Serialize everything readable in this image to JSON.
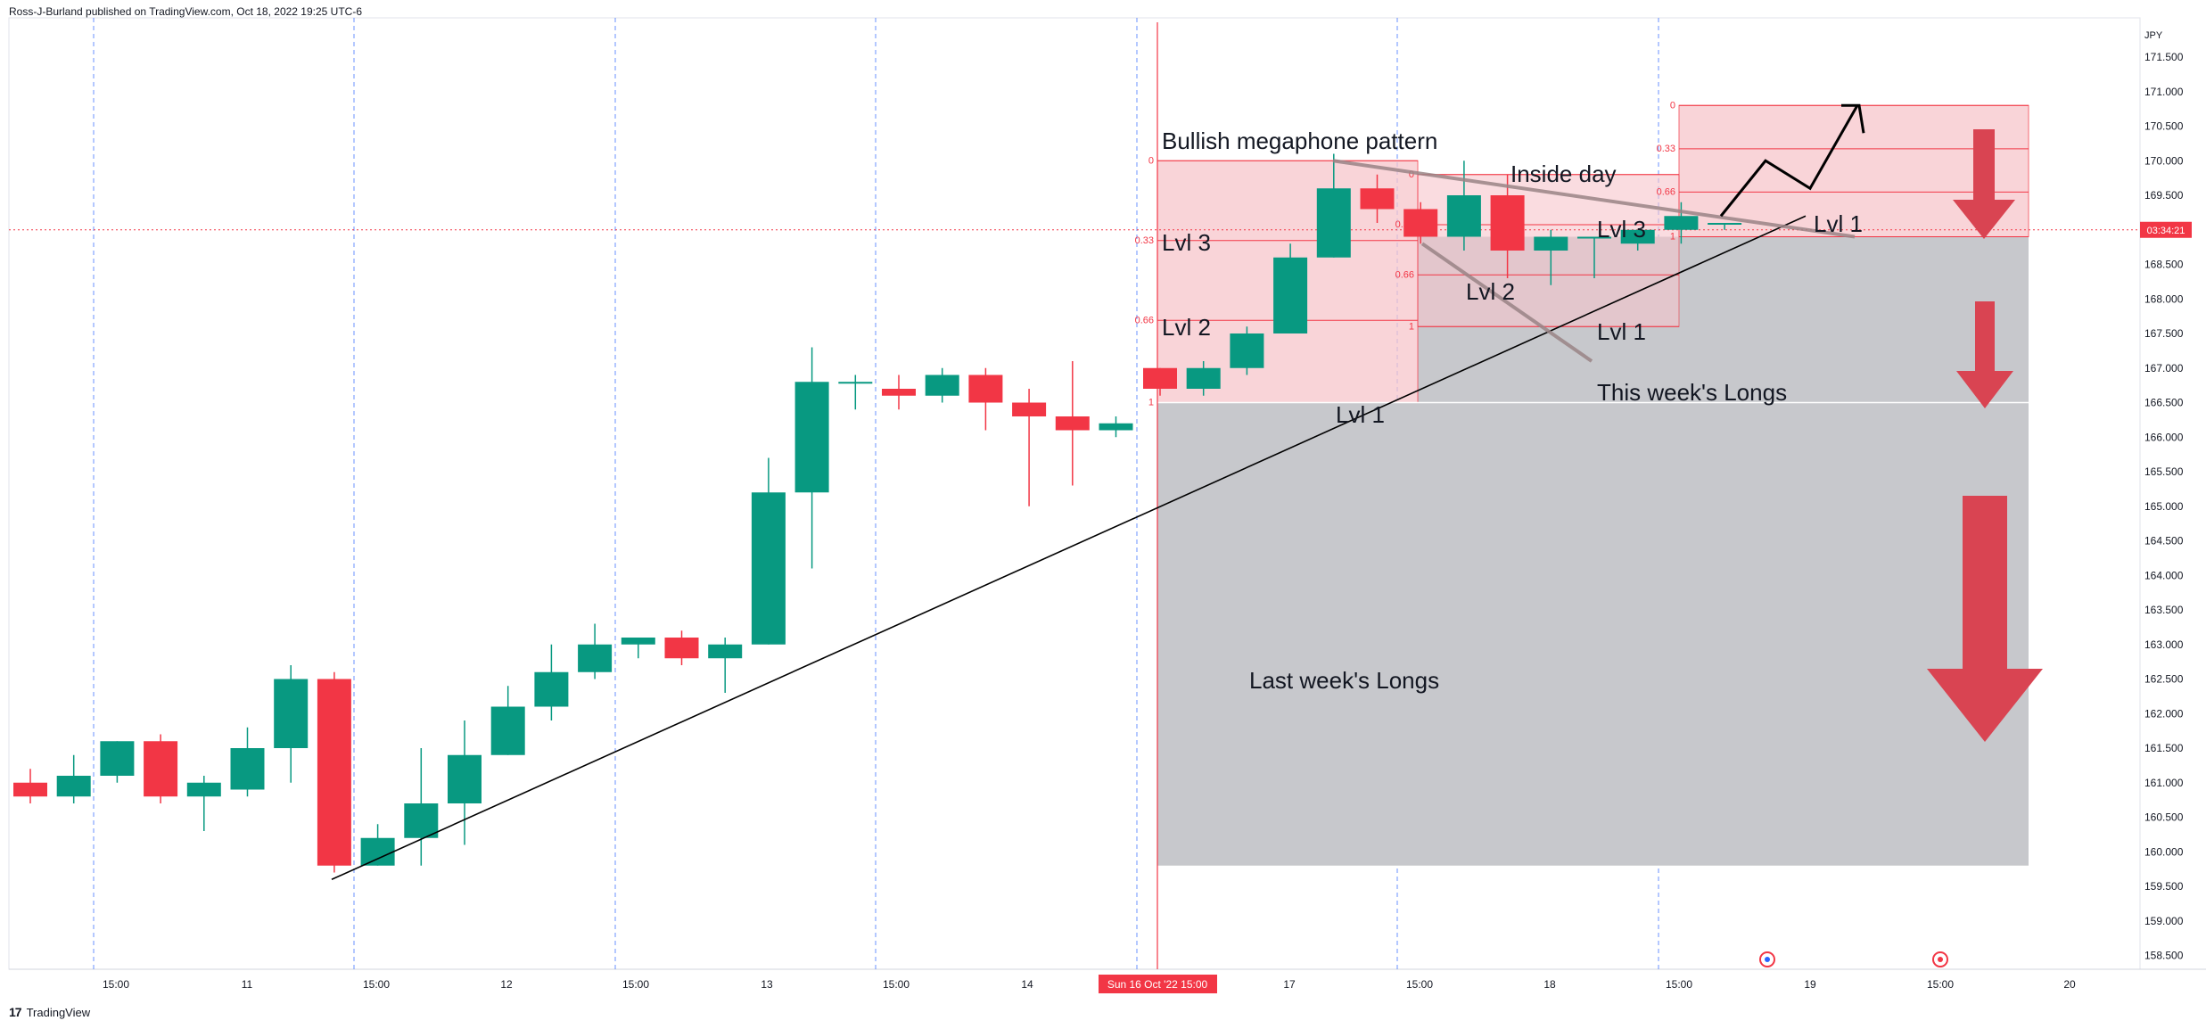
{
  "header": {
    "publisher_line": "Ross-J-Burland published on TradingView.com, Oct 18, 2022 19:25 UTC-6"
  },
  "footer": {
    "brand": "TradingView",
    "logo_text": "17"
  },
  "colors": {
    "up": "#089981",
    "down": "#f23645",
    "zone_red": "#f7c6cc",
    "zone_grey": "#c7c8cc",
    "arrow": "#d94452",
    "cursor": "#f23645",
    "grid_dash": "#2962ff"
  },
  "chart_data": {
    "type": "candlestick",
    "currency": "JPY",
    "y_ticks": [
      "171.500",
      "171.000",
      "170.500",
      "170.000",
      "169.500",
      "169.000",
      "168.500",
      "168.000",
      "167.500",
      "167.000",
      "166.500",
      "166.000",
      "165.500",
      "165.000",
      "164.500",
      "164.000",
      "163.500",
      "163.000",
      "162.500",
      "162.000",
      "161.500",
      "161.000",
      "160.500",
      "160.000",
      "159.500",
      "159.000",
      "158.500"
    ],
    "ylim": [
      158.3,
      171.9
    ],
    "price_label": "03:34:21",
    "price_level": 169.0,
    "x_labels": [
      {
        "t": 0.5,
        "label": "15:00"
      },
      {
        "t": 2.5,
        "label": "11"
      },
      {
        "t": 3.5,
        "label": "15:00"
      },
      {
        "t": 5.5,
        "label": "12"
      },
      {
        "t": 6.5,
        "label": "15:00"
      },
      {
        "t": 8.5,
        "label": "13"
      },
      {
        "t": 9.5,
        "label": "15:00"
      },
      {
        "t": 11.5,
        "label": "14"
      },
      {
        "t": 14.5,
        "label": "17"
      },
      {
        "t": 15.5,
        "label": "15:00"
      },
      {
        "t": 17.5,
        "label": "18"
      },
      {
        "t": 18.5,
        "label": "15:00"
      },
      {
        "t": 20.5,
        "label": "19"
      },
      {
        "t": 21.5,
        "label": "15:00"
      },
      {
        "t": 22.5,
        "label": "20"
      }
    ],
    "x_cursor_label": "Sun 16 Oct '22   15:00",
    "candles": [
      {
        "o": 161.0,
        "h": 161.2,
        "l": 160.7,
        "c": 160.8
      },
      {
        "o": 160.8,
        "h": 161.4,
        "l": 160.7,
        "c": 161.1
      },
      {
        "o": 161.1,
        "h": 161.6,
        "l": 161.0,
        "c": 161.6
      },
      {
        "o": 161.6,
        "h": 161.7,
        "l": 160.7,
        "c": 160.8
      },
      {
        "o": 160.8,
        "h": 161.1,
        "l": 160.3,
        "c": 161.0
      },
      {
        "o": 160.9,
        "h": 161.8,
        "l": 160.8,
        "c": 161.5
      },
      {
        "o": 161.5,
        "h": 162.7,
        "l": 161.0,
        "c": 162.5
      },
      {
        "o": 162.5,
        "h": 162.6,
        "l": 159.7,
        "c": 159.8
      },
      {
        "o": 159.8,
        "h": 160.4,
        "l": 159.8,
        "c": 160.2
      },
      {
        "o": 160.2,
        "h": 161.5,
        "l": 159.8,
        "c": 160.7
      },
      {
        "o": 160.7,
        "h": 161.9,
        "l": 160.1,
        "c": 161.4
      },
      {
        "o": 161.4,
        "h": 162.4,
        "l": 161.4,
        "c": 162.1
      },
      {
        "o": 162.1,
        "h": 163.0,
        "l": 161.9,
        "c": 162.6
      },
      {
        "o": 162.6,
        "h": 163.3,
        "l": 162.5,
        "c": 163.0
      },
      {
        "o": 163.0,
        "h": 163.1,
        "l": 162.8,
        "c": 163.1
      },
      {
        "o": 163.1,
        "h": 163.2,
        "l": 162.7,
        "c": 162.8
      },
      {
        "o": 162.8,
        "h": 163.1,
        "l": 162.3,
        "c": 163.0
      },
      {
        "o": 163.0,
        "h": 165.7,
        "l": 163.0,
        "c": 165.2
      },
      {
        "o": 165.2,
        "h": 167.3,
        "l": 164.1,
        "c": 166.8
      },
      {
        "o": 166.8,
        "h": 166.9,
        "l": 166.4,
        "c": 166.8
      },
      {
        "o": 166.7,
        "h": 166.9,
        "l": 166.4,
        "c": 166.6
      },
      {
        "o": 166.6,
        "h": 167.0,
        "l": 166.5,
        "c": 166.9
      },
      {
        "o": 166.9,
        "h": 167.0,
        "l": 166.1,
        "c": 166.5
      },
      {
        "o": 166.5,
        "h": 166.7,
        "l": 165.0,
        "c": 166.3
      },
      {
        "o": 166.3,
        "h": 167.1,
        "l": 165.3,
        "c": 166.1
      },
      {
        "o": 166.1,
        "h": 166.3,
        "l": 166.0,
        "c": 166.2
      },
      {
        "o": 167.0,
        "h": 167.0,
        "l": 166.6,
        "c": 166.7
      },
      {
        "o": 166.7,
        "h": 167.1,
        "l": 166.6,
        "c": 167.0
      },
      {
        "o": 167.0,
        "h": 167.6,
        "l": 166.9,
        "c": 167.5
      },
      {
        "o": 167.5,
        "h": 168.8,
        "l": 167.5,
        "c": 168.6
      },
      {
        "o": 168.6,
        "h": 170.1,
        "l": 168.6,
        "c": 169.6
      },
      {
        "o": 169.6,
        "h": 169.8,
        "l": 169.1,
        "c": 169.3
      },
      {
        "o": 169.3,
        "h": 169.4,
        "l": 168.8,
        "c": 168.9
      },
      {
        "o": 168.9,
        "h": 170.0,
        "l": 168.7,
        "c": 169.5
      },
      {
        "o": 169.5,
        "h": 169.8,
        "l": 168.3,
        "c": 168.7
      },
      {
        "o": 168.7,
        "h": 169.0,
        "l": 168.2,
        "c": 168.9
      },
      {
        "o": 168.9,
        "h": 168.9,
        "l": 168.3,
        "c": 168.9
      },
      {
        "o": 168.8,
        "h": 169.0,
        "l": 168.7,
        "c": 169.0
      },
      {
        "o": 169.0,
        "h": 169.4,
        "l": 168.8,
        "c": 169.2
      },
      {
        "o": 169.1,
        "h": 169.1,
        "l": 169.0,
        "c": 169.1
      }
    ],
    "fib_labels": {
      "zero": "0",
      "third": "0.33",
      "two_thirds": "0.66",
      "one": "1"
    },
    "annotations": {
      "megaphone": "Bullish megaphone pattern",
      "inside_day": "Inside day",
      "lvl3": "Lvl 3",
      "lvl2": "Lvl 2",
      "lvl1": "Lvl 1",
      "lvl3_b": "Lvl 3",
      "lvl2_b": "Lvl 2",
      "lvl1_b": "Lvl 1",
      "lvl1_c": "Lvl 1",
      "lvl1_d": "Lvl 1",
      "this_week": "This week's Longs",
      "last_week": "Last week's Longs"
    }
  }
}
